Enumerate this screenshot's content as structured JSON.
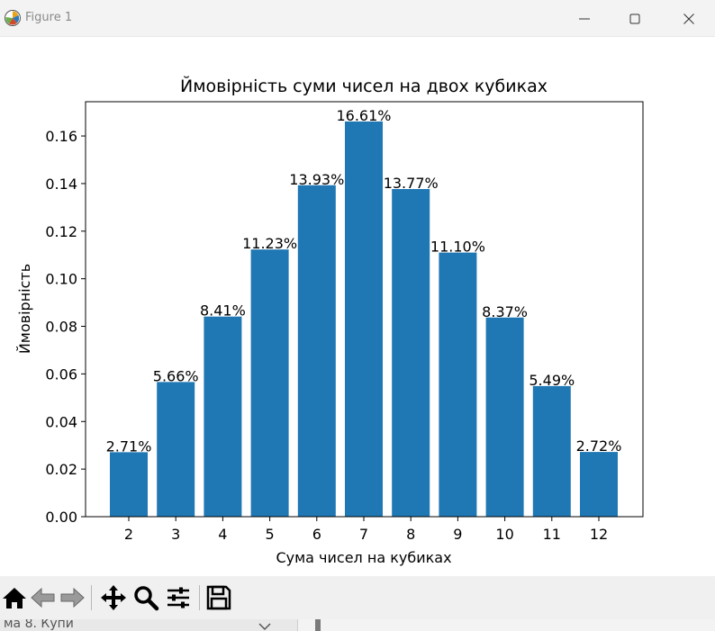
{
  "window": {
    "title": "Figure 1",
    "controls": [
      "minimize-icon",
      "maximize-icon",
      "close-icon"
    ]
  },
  "toolbar": {
    "buttons": [
      "home-icon",
      "back-arrow-icon",
      "forward-arrow-icon",
      "pan-icon",
      "zoom-icon",
      "configure-subplots-icon",
      "save-icon"
    ]
  },
  "background_window": {
    "text": "ма 8. Купи"
  },
  "colors": {
    "bar": "#1f77b4",
    "titlebar": "#f3f3f3",
    "toolbar": "#f0f0f0"
  },
  "chart_data": {
    "type": "bar",
    "title": "Ймовірність суми чисел на двох кубиках",
    "xlabel": "Сума чисел на кубиках",
    "ylabel": "Ймовірність",
    "categories": [
      "2",
      "3",
      "4",
      "5",
      "6",
      "7",
      "8",
      "9",
      "10",
      "11",
      "12"
    ],
    "values": [
      0.0271,
      0.0566,
      0.0841,
      0.1123,
      0.1393,
      0.1661,
      0.1377,
      0.111,
      0.0837,
      0.0549,
      0.0272
    ],
    "data_labels": [
      "2.71%",
      "5.66%",
      "8.41%",
      "11.23%",
      "13.93%",
      "16.61%",
      "13.77%",
      "11.10%",
      "8.37%",
      "5.49%",
      "2.72%"
    ],
    "yticks": [
      "0.00",
      "0.02",
      "0.04",
      "0.06",
      "0.08",
      "0.10",
      "0.12",
      "0.14",
      "0.16"
    ],
    "ylim": [
      0,
      0.1744
    ],
    "grid": false,
    "legend": "none"
  }
}
